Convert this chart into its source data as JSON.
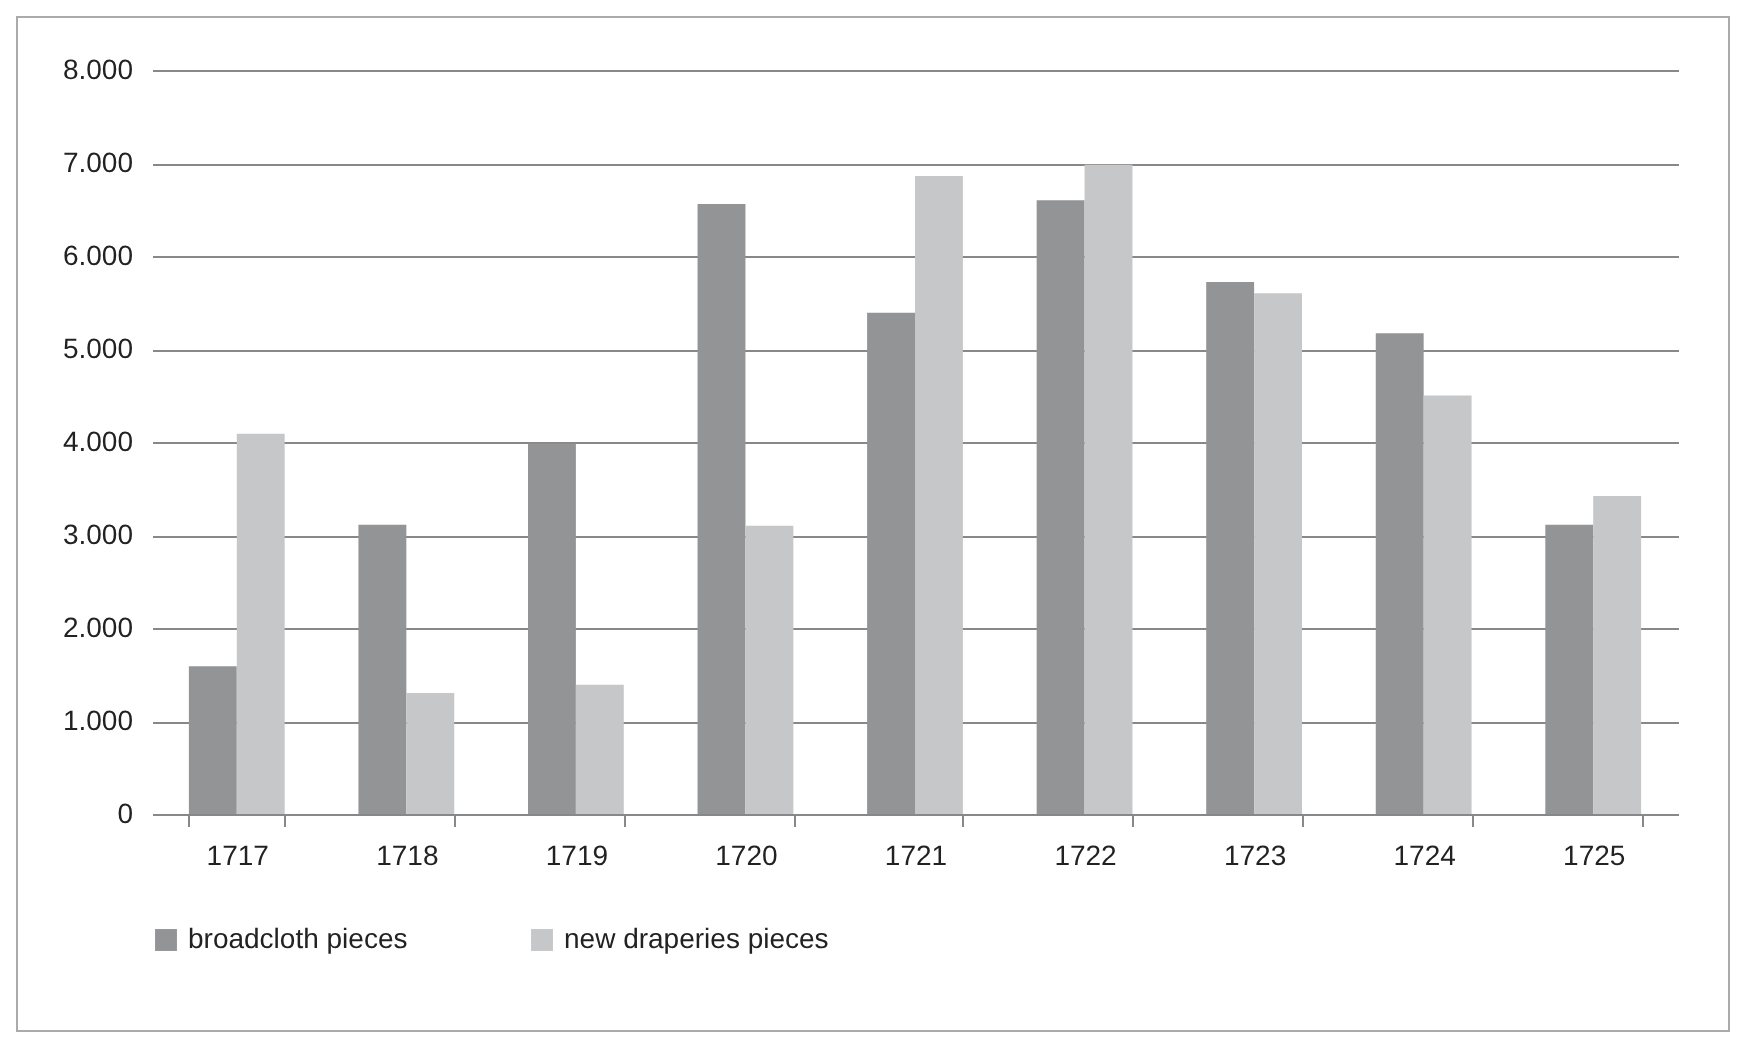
{
  "chart_data": {
    "type": "bar",
    "categories": [
      "1717",
      "1718",
      "1719",
      "1720",
      "1721",
      "1722",
      "1723",
      "1724",
      "1725"
    ],
    "series": [
      {
        "name": "broadcloth pieces",
        "color": "#939495",
        "values": [
          1590,
          3110,
          3980,
          6560,
          5390,
          6600,
          5720,
          5170,
          3110
        ]
      },
      {
        "name": "new draperies pieces",
        "color": "#c6c7c9",
        "values": [
          4090,
          1300,
          1390,
          3100,
          6860,
          6980,
          5600,
          4500,
          3420
        ]
      }
    ],
    "ylim": [
      0,
      8000
    ],
    "yticks": [
      {
        "value": 0,
        "label": "0"
      },
      {
        "value": 1000,
        "label": "1.000"
      },
      {
        "value": 2000,
        "label": "2.000"
      },
      {
        "value": 3000,
        "label": "3.000"
      },
      {
        "value": 4000,
        "label": "4.000"
      },
      {
        "value": 5000,
        "label": "5.000"
      },
      {
        "value": 6000,
        "label": "6.000"
      },
      {
        "value": 7000,
        "label": "7.000"
      },
      {
        "value": 8000,
        "label": "8.000"
      }
    ],
    "grid": "y",
    "legend": "bottom"
  }
}
